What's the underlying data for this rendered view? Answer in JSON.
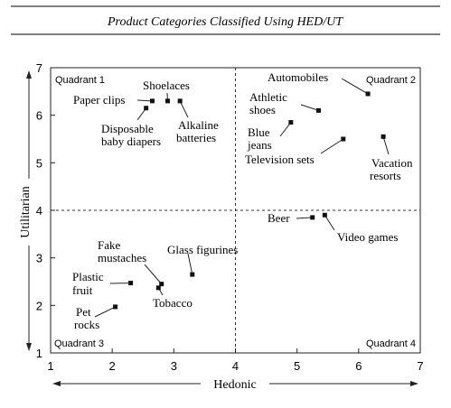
{
  "chart_data": {
    "type": "scatter",
    "title": "Product Categories Classified Using HED/UT",
    "xlabel": "Hedonic",
    "ylabel": "Utilitarian",
    "xlim": [
      1,
      7
    ],
    "ylim": [
      1,
      7
    ],
    "x_ticks": [
      "1",
      "2",
      "3",
      "4",
      "5",
      "6",
      "7"
    ],
    "y_ticks": [
      "1",
      "2",
      "3",
      "4",
      "5",
      "6",
      "7"
    ],
    "divider_x": 4,
    "divider_y": 4,
    "quadrants": [
      "Quadrant 1",
      "Quadrant 2",
      "Quadrant 3",
      "Quadrant 4"
    ],
    "grid": false,
    "points": [
      {
        "label": "Paper clips",
        "x": 2.65,
        "y": 6.3
      },
      {
        "label": "Shoelaces",
        "x": 2.9,
        "y": 6.3
      },
      {
        "label": "Disposable baby diapers",
        "x": 2.55,
        "y": 6.15
      },
      {
        "label": "Alkaline batteries",
        "x": 3.1,
        "y": 6.3
      },
      {
        "label": "Automobiles",
        "x": 6.15,
        "y": 6.45
      },
      {
        "label": "Athletic shoes",
        "x": 5.35,
        "y": 6.1
      },
      {
        "label": "Blue jeans",
        "x": 4.9,
        "y": 5.85
      },
      {
        "label": "Television sets",
        "x": 5.75,
        "y": 5.5
      },
      {
        "label": "Vacation resorts",
        "x": 6.4,
        "y": 5.55
      },
      {
        "label": "Beer",
        "x": 5.25,
        "y": 3.85
      },
      {
        "label": "Video games",
        "x": 5.45,
        "y": 3.9
      },
      {
        "label": "Fake mustaches",
        "x": 2.8,
        "y": 2.45
      },
      {
        "label": "Glass figurines",
        "x": 3.3,
        "y": 2.65
      },
      {
        "label": "Tobacco",
        "x": 2.75,
        "y": 2.37
      },
      {
        "label": "Plastic fruit",
        "x": 2.3,
        "y": 2.47
      },
      {
        "label": "Pet rocks",
        "x": 2.05,
        "y": 1.97
      }
    ]
  }
}
